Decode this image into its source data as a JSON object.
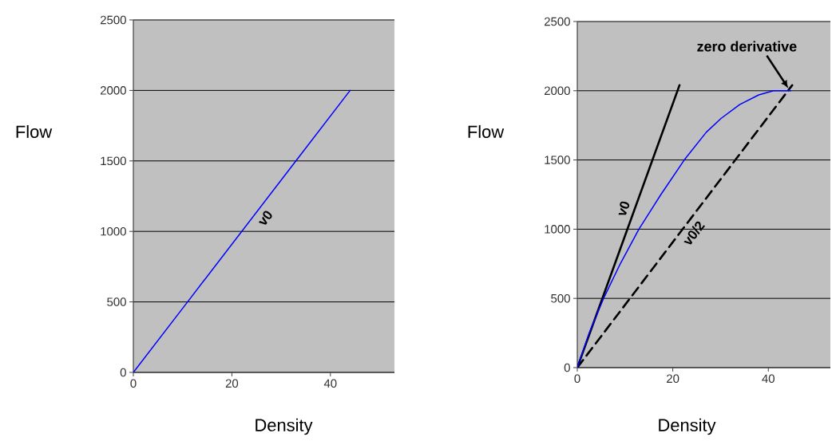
{
  "chart_data": [
    {
      "type": "line",
      "xlabel": "Density",
      "ylabel": "Flow",
      "xlim": [
        0,
        53
      ],
      "ylim": [
        0,
        2500
      ],
      "xticks": [
        0,
        20,
        40
      ],
      "yticks": [
        0,
        500,
        1000,
        1500,
        2000,
        2500
      ],
      "grid": "y",
      "series": [
        {
          "name": "v0",
          "color": "#0000ff",
          "x": [
            0,
            11,
            22,
            33,
            44
          ],
          "values": [
            0,
            500,
            1000,
            1500,
            2000
          ]
        }
      ]
    },
    {
      "type": "line",
      "xlabel": "Density",
      "ylabel": "Flow",
      "xlim": [
        0,
        53
      ],
      "ylim": [
        0,
        2500
      ],
      "xticks": [
        0,
        20,
        40
      ],
      "yticks": [
        0,
        500,
        1000,
        1500,
        2000,
        2500
      ],
      "grid": "y",
      "annotations": [
        {
          "text": "zero derivative",
          "x": 44.7,
          "y": 2000
        }
      ],
      "series": [
        {
          "name": "v0",
          "color": "#000000",
          "line_style": "solid",
          "x": [
            0,
            21.4
          ],
          "values": [
            0,
            2040
          ]
        },
        {
          "name": "v0/2",
          "color": "#000000",
          "line_style": "dashed",
          "x": [
            0,
            45
          ],
          "values": [
            0,
            2040
          ]
        },
        {
          "color": "#0000ff",
          "line_style": "solid",
          "x": [
            0,
            2.5,
            5.5,
            9,
            12.9,
            17.5,
            22.4,
            27,
            30.1,
            34,
            38,
            41.1,
            44.7
          ],
          "values": [
            0,
            250,
            500,
            750,
            1000,
            1250,
            1500,
            1700,
            1800,
            1900,
            1970,
            2000,
            2000
          ]
        }
      ]
    }
  ]
}
